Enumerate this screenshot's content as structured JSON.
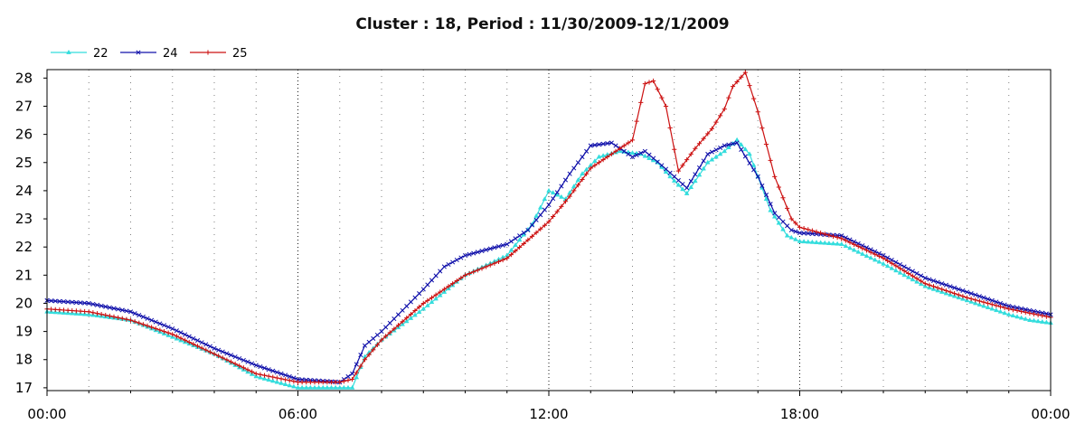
{
  "chart_data": {
    "type": "line",
    "title": "Cluster : 18, Period : 11/30/2009-12/1/2009",
    "xlabel": "",
    "ylabel": "",
    "x_tick_labels": [
      "00:00",
      "06:00",
      "12:00",
      "18:00",
      "00:00"
    ],
    "x_range_hours": [
      0,
      24
    ],
    "x_minor_tick_hours": 1,
    "ylim": [
      16.9,
      28.3
    ],
    "y_ticks": [
      17,
      18,
      19,
      20,
      21,
      22,
      23,
      24,
      25,
      26,
      27,
      28
    ],
    "grid": true,
    "legend_position": "top-left",
    "series": [
      {
        "name": "22",
        "color": "#33dddd",
        "marker": "triangle",
        "points": [
          [
            0,
            19.7
          ],
          [
            1,
            19.6
          ],
          [
            2,
            19.4
          ],
          [
            3,
            18.8
          ],
          [
            4,
            18.2
          ],
          [
            5,
            17.4
          ],
          [
            6,
            17.0
          ],
          [
            6.5,
            17.0
          ],
          [
            7,
            17.0
          ],
          [
            7.3,
            17.0
          ],
          [
            7.6,
            18.1
          ],
          [
            8,
            18.7
          ],
          [
            9,
            19.8
          ],
          [
            10,
            21.0
          ],
          [
            11,
            21.7
          ],
          [
            11.6,
            22.8
          ],
          [
            12,
            24.0
          ],
          [
            12.4,
            23.7
          ],
          [
            12.8,
            24.6
          ],
          [
            13.2,
            25.2
          ],
          [
            13.7,
            25.4
          ],
          [
            14.2,
            25.3
          ],
          [
            14.6,
            25.0
          ],
          [
            14.9,
            24.5
          ],
          [
            15.3,
            23.9
          ],
          [
            15.8,
            25.0
          ],
          [
            16.2,
            25.4
          ],
          [
            16.5,
            25.8
          ],
          [
            16.8,
            25.3
          ],
          [
            17.3,
            23.3
          ],
          [
            17.7,
            22.4
          ],
          [
            18,
            22.2
          ],
          [
            19,
            22.1
          ],
          [
            20,
            21.4
          ],
          [
            21,
            20.6
          ],
          [
            22,
            20.1
          ],
          [
            23,
            19.6
          ],
          [
            23.5,
            19.4
          ],
          [
            24,
            19.3
          ]
        ]
      },
      {
        "name": "24",
        "color": "#1010aa",
        "marker": "x",
        "points": [
          [
            0,
            20.1
          ],
          [
            1,
            20.0
          ],
          [
            2,
            19.7
          ],
          [
            3,
            19.1
          ],
          [
            4,
            18.4
          ],
          [
            5,
            17.8
          ],
          [
            6,
            17.3
          ],
          [
            7,
            17.2
          ],
          [
            7.3,
            17.5
          ],
          [
            7.6,
            18.5
          ],
          [
            8,
            19.0
          ],
          [
            9,
            20.5
          ],
          [
            9.5,
            21.3
          ],
          [
            10,
            21.7
          ],
          [
            11,
            22.1
          ],
          [
            11.5,
            22.6
          ],
          [
            12,
            23.5
          ],
          [
            12.5,
            24.6
          ],
          [
            13,
            25.6
          ],
          [
            13.5,
            25.7
          ],
          [
            14,
            25.2
          ],
          [
            14.3,
            25.4
          ],
          [
            14.7,
            24.9
          ],
          [
            15,
            24.5
          ],
          [
            15.3,
            24.1
          ],
          [
            15.8,
            25.3
          ],
          [
            16.2,
            25.6
          ],
          [
            16.5,
            25.7
          ],
          [
            17,
            24.5
          ],
          [
            17.4,
            23.2
          ],
          [
            17.8,
            22.6
          ],
          [
            18,
            22.5
          ],
          [
            19,
            22.4
          ],
          [
            20,
            21.7
          ],
          [
            21,
            20.9
          ],
          [
            22,
            20.4
          ],
          [
            23,
            19.9
          ],
          [
            24,
            19.6
          ]
        ]
      },
      {
        "name": "25",
        "color": "#cc1111",
        "marker": "plus",
        "points": [
          [
            0,
            19.8
          ],
          [
            1,
            19.7
          ],
          [
            2,
            19.4
          ],
          [
            3,
            18.9
          ],
          [
            4,
            18.2
          ],
          [
            5,
            17.5
          ],
          [
            6,
            17.2
          ],
          [
            7,
            17.2
          ],
          [
            7.3,
            17.3
          ],
          [
            7.6,
            18.0
          ],
          [
            8,
            18.7
          ],
          [
            9,
            20.0
          ],
          [
            10,
            21.0
          ],
          [
            11,
            21.6
          ],
          [
            12,
            22.9
          ],
          [
            12.5,
            23.8
          ],
          [
            13,
            24.8
          ],
          [
            13.5,
            25.3
          ],
          [
            13.8,
            25.6
          ],
          [
            14,
            25.8
          ],
          [
            14.3,
            27.8
          ],
          [
            14.5,
            27.9
          ],
          [
            14.8,
            27.0
          ],
          [
            15.1,
            24.7
          ],
          [
            15.5,
            25.5
          ],
          [
            15.9,
            26.2
          ],
          [
            16.2,
            26.9
          ],
          [
            16.4,
            27.7
          ],
          [
            16.7,
            28.2
          ],
          [
            17,
            26.8
          ],
          [
            17.4,
            24.5
          ],
          [
            17.8,
            23.0
          ],
          [
            18,
            22.7
          ],
          [
            19,
            22.3
          ],
          [
            20,
            21.6
          ],
          [
            21,
            20.7
          ],
          [
            22,
            20.2
          ],
          [
            23,
            19.8
          ],
          [
            24,
            19.5
          ]
        ]
      }
    ]
  }
}
